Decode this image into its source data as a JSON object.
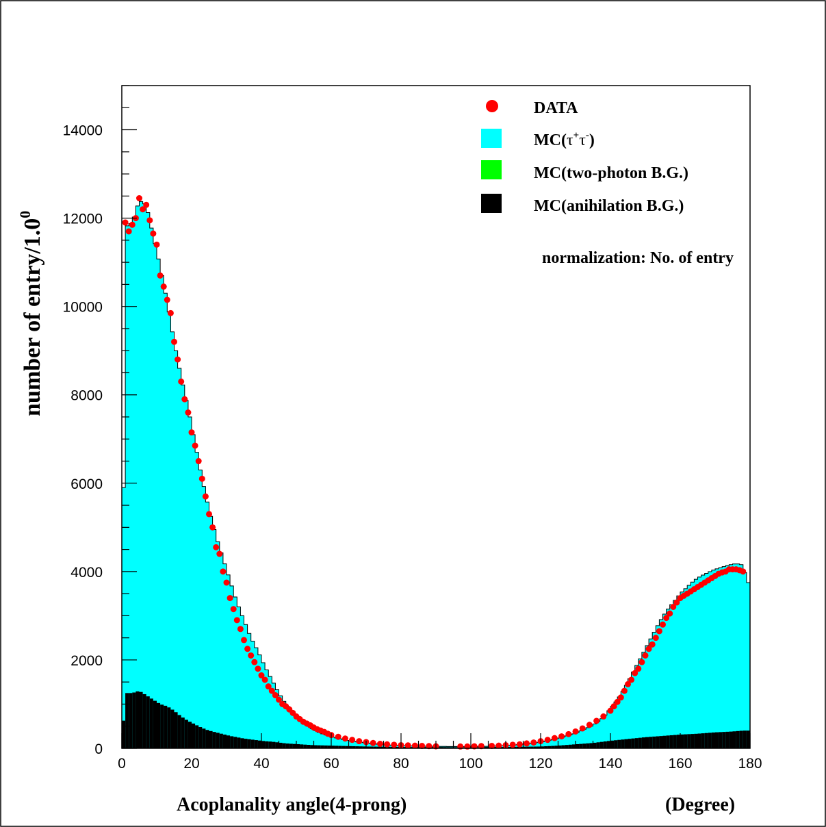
{
  "chart_data": {
    "type": "bar",
    "title": "",
    "xlabel": "Acoplanality angle(4-prong)",
    "xunit": "(Degree)",
    "ylabel_main": "number of entry/1.0",
    "ylabel_sup": "0",
    "xlim": [
      0,
      180
    ],
    "ylim": [
      0,
      15000
    ],
    "bin_width": 1.0,
    "x_ticks": [
      "0",
      "20",
      "40",
      "60",
      "80",
      "100",
      "120",
      "140",
      "160",
      "180"
    ],
    "y_ticks": [
      "0",
      "2000",
      "4000",
      "6000",
      "8000",
      "10000",
      "12000",
      "14000"
    ],
    "annotation": "normalization: No. of entry",
    "colors": {
      "tautau": "#00ffff",
      "two_photon": "#00ff00",
      "annihilation": "#000000",
      "data": "#ff0000"
    },
    "legend": {
      "placement": "top-right",
      "items": [
        {
          "key": "data",
          "label": "DATA",
          "marker": "circle"
        },
        {
          "key": "tautau",
          "label_main": "MC(",
          "label_tau1": "τ",
          "label_sup1": "+",
          "label_tau2": "τ",
          "label_sup2": "-",
          "label_end": ")",
          "marker": "box"
        },
        {
          "key": "two_photon",
          "label": "MC(two-photon B.G.)",
          "marker": "box"
        },
        {
          "key": "annihilation",
          "label": "MC(anihilation B.G.)",
          "marker": "box"
        }
      ]
    },
    "series_curves": {
      "mc_total": [
        [
          0,
          0
        ],
        [
          1,
          11800
        ],
        [
          3,
          11900
        ],
        [
          5,
          12400
        ],
        [
          7,
          12300
        ],
        [
          9,
          11600
        ],
        [
          11,
          10900
        ],
        [
          13,
          10100
        ],
        [
          15,
          9200
        ],
        [
          17,
          8400
        ],
        [
          19,
          7700
        ],
        [
          21,
          6900
        ],
        [
          23,
          6100
        ],
        [
          25,
          5400
        ],
        [
          27,
          4800
        ],
        [
          29,
          4300
        ],
        [
          31,
          3800
        ],
        [
          33,
          3300
        ],
        [
          35,
          2900
        ],
        [
          37,
          2500
        ],
        [
          39,
          2200
        ],
        [
          41,
          1850
        ],
        [
          43,
          1550
        ],
        [
          45,
          1250
        ],
        [
          47,
          1000
        ],
        [
          49,
          800
        ],
        [
          51,
          650
        ],
        [
          53,
          520
        ],
        [
          55,
          420
        ],
        [
          57,
          340
        ],
        [
          60,
          260
        ],
        [
          65,
          170
        ],
        [
          70,
          120
        ],
        [
          75,
          80
        ],
        [
          80,
          60
        ],
        [
          85,
          50
        ],
        [
          90,
          45
        ],
        [
          95,
          40
        ],
        [
          100,
          40
        ],
        [
          105,
          45
        ],
        [
          110,
          60
        ],
        [
          115,
          90
        ],
        [
          120,
          140
        ],
        [
          125,
          220
        ],
        [
          130,
          340
        ],
        [
          135,
          520
        ],
        [
          138,
          700
        ],
        [
          140,
          900
        ],
        [
          142,
          1100
        ],
        [
          144,
          1350
        ],
        [
          146,
          1650
        ],
        [
          148,
          1950
        ],
        [
          150,
          2250
        ],
        [
          152,
          2550
        ],
        [
          154,
          2850
        ],
        [
          156,
          3100
        ],
        [
          158,
          3300
        ],
        [
          160,
          3500
        ],
        [
          162,
          3650
        ],
        [
          164,
          3800
        ],
        [
          166,
          3900
        ],
        [
          168,
          3980
        ],
        [
          170,
          4050
        ],
        [
          172,
          4100
        ],
        [
          174,
          4150
        ],
        [
          176,
          4180
        ],
        [
          178,
          4150
        ],
        [
          179,
          3800
        ],
        [
          180,
          3700
        ]
      ],
      "mc_annihilation": [
        [
          0,
          0
        ],
        [
          1,
          1250
        ],
        [
          3,
          1250
        ],
        [
          5,
          1300
        ],
        [
          7,
          1200
        ],
        [
          9,
          1100
        ],
        [
          11,
          1000
        ],
        [
          13,
          950
        ],
        [
          15,
          850
        ],
        [
          17,
          720
        ],
        [
          19,
          620
        ],
        [
          21,
          540
        ],
        [
          23,
          460
        ],
        [
          25,
          400
        ],
        [
          27,
          360
        ],
        [
          29,
          320
        ],
        [
          31,
          280
        ],
        [
          33,
          250
        ],
        [
          35,
          220
        ],
        [
          37,
          200
        ],
        [
          39,
          180
        ],
        [
          41,
          160
        ],
        [
          43,
          150
        ],
        [
          45,
          130
        ],
        [
          47,
          110
        ],
        [
          49,
          100
        ],
        [
          51,
          90
        ],
        [
          53,
          80
        ],
        [
          55,
          70
        ],
        [
          60,
          60
        ],
        [
          65,
          50
        ],
        [
          70,
          40
        ],
        [
          75,
          35
        ],
        [
          80,
          30
        ],
        [
          85,
          30
        ],
        [
          90,
          30
        ],
        [
          95,
          25
        ],
        [
          100,
          25
        ],
        [
          105,
          30
        ],
        [
          110,
          30
        ],
        [
          115,
          35
        ],
        [
          120,
          40
        ],
        [
          125,
          60
        ],
        [
          130,
          90
        ],
        [
          135,
          120
        ],
        [
          140,
          170
        ],
        [
          145,
          210
        ],
        [
          150,
          250
        ],
        [
          155,
          280
        ],
        [
          160,
          310
        ],
        [
          165,
          330
        ],
        [
          170,
          360
        ],
        [
          175,
          380
        ],
        [
          178,
          400
        ],
        [
          180,
          400
        ]
      ],
      "data_points": [
        [
          1,
          11900
        ],
        [
          2,
          11700
        ],
        [
          3,
          11850
        ],
        [
          4,
          12000
        ],
        [
          5,
          12450
        ],
        [
          6,
          12200
        ],
        [
          7,
          12300
        ],
        [
          8,
          11950
        ],
        [
          9,
          11650
        ],
        [
          10,
          11400
        ],
        [
          11,
          10700
        ],
        [
          12,
          10450
        ],
        [
          13,
          10150
        ],
        [
          14,
          9850
        ],
        [
          15,
          9200
        ],
        [
          16,
          8800
        ],
        [
          17,
          8300
        ],
        [
          18,
          7900
        ],
        [
          19,
          7600
        ],
        [
          20,
          7150
        ],
        [
          21,
          6850
        ],
        [
          22,
          6500
        ],
        [
          23,
          6100
        ],
        [
          24,
          5700
        ],
        [
          25,
          5300
        ],
        [
          26,
          5000
        ],
        [
          27,
          4550
        ],
        [
          28,
          4400
        ],
        [
          29,
          4000
        ],
        [
          30,
          3750
        ],
        [
          31,
          3400
        ],
        [
          32,
          3150
        ],
        [
          33,
          2900
        ],
        [
          34,
          2700
        ],
        [
          35,
          2450
        ],
        [
          36,
          2250
        ],
        [
          37,
          2100
        ],
        [
          38,
          1950
        ],
        [
          39,
          1800
        ],
        [
          40,
          1650
        ],
        [
          41,
          1550
        ],
        [
          42,
          1400
        ],
        [
          43,
          1300
        ],
        [
          44,
          1200
        ],
        [
          45,
          1100
        ],
        [
          46,
          1000
        ],
        [
          47,
          950
        ],
        [
          48,
          880
        ],
        [
          49,
          800
        ],
        [
          50,
          720
        ],
        [
          51,
          660
        ],
        [
          52,
          600
        ],
        [
          53,
          560
        ],
        [
          54,
          520
        ],
        [
          55,
          470
        ],
        [
          56,
          430
        ],
        [
          57,
          400
        ],
        [
          58,
          370
        ],
        [
          59,
          330
        ],
        [
          60,
          300
        ],
        [
          62,
          260
        ],
        [
          64,
          220
        ],
        [
          66,
          190
        ],
        [
          68,
          160
        ],
        [
          70,
          140
        ],
        [
          72,
          120
        ],
        [
          74,
          100
        ],
        [
          76,
          90
        ],
        [
          78,
          80
        ],
        [
          80,
          70
        ],
        [
          82,
          65
        ],
        [
          84,
          60
        ],
        [
          86,
          55
        ],
        [
          88,
          50
        ],
        [
          90,
          45
        ],
        [
          97,
          40
        ],
        [
          99,
          40
        ],
        [
          101,
          45
        ],
        [
          103,
          50
        ],
        [
          106,
          55
        ],
        [
          108,
          60
        ],
        [
          110,
          70
        ],
        [
          112,
          80
        ],
        [
          114,
          90
        ],
        [
          116,
          110
        ],
        [
          118,
          130
        ],
        [
          120,
          160
        ],
        [
          122,
          190
        ],
        [
          124,
          230
        ],
        [
          126,
          270
        ],
        [
          128,
          320
        ],
        [
          130,
          380
        ],
        [
          132,
          450
        ],
        [
          134,
          530
        ],
        [
          136,
          620
        ],
        [
          138,
          720
        ],
        [
          140,
          850
        ],
        [
          141,
          950
        ],
        [
          142,
          1050
        ],
        [
          143,
          1150
        ],
        [
          144,
          1300
        ],
        [
          145,
          1450
        ],
        [
          146,
          1550
        ],
        [
          147,
          1700
        ],
        [
          148,
          1800
        ],
        [
          149,
          1950
        ],
        [
          150,
          2100
        ],
        [
          151,
          2250
        ],
        [
          152,
          2350
        ],
        [
          153,
          2500
        ],
        [
          154,
          2650
        ],
        [
          155,
          2800
        ],
        [
          156,
          2950
        ],
        [
          157,
          3050
        ],
        [
          158,
          3200
        ],
        [
          159,
          3300
        ],
        [
          160,
          3400
        ],
        [
          161,
          3450
        ],
        [
          162,
          3500
        ],
        [
          163,
          3550
        ],
        [
          164,
          3600
        ],
        [
          165,
          3650
        ],
        [
          166,
          3700
        ],
        [
          167,
          3750
        ],
        [
          168,
          3800
        ],
        [
          169,
          3850
        ],
        [
          170,
          3900
        ],
        [
          171,
          3950
        ],
        [
          172,
          3980
        ],
        [
          173,
          4000
        ],
        [
          174,
          4050
        ],
        [
          175,
          4050
        ],
        [
          176,
          4050
        ],
        [
          177,
          4030
        ],
        [
          178,
          4000
        ]
      ]
    }
  }
}
